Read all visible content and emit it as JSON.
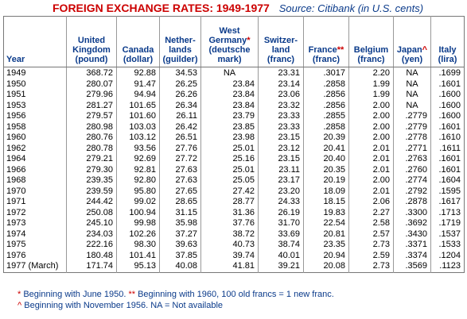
{
  "title": "FOREIGN EXCHANGE RATES: 1949-1977",
  "source": "Source: Citibank (in U.S. cents)",
  "headers": [
    {
      "lines": [
        "Year"
      ]
    },
    {
      "lines": [
        "United",
        "Kingdom",
        "(pound)"
      ]
    },
    {
      "lines": [
        "Canada",
        "(dollar)"
      ]
    },
    {
      "lines": [
        "Nether-",
        "lands",
        "(guilder)"
      ]
    },
    {
      "lines": [
        "West",
        "Germany",
        "(deutsche",
        "mark)"
      ],
      "star": "*",
      "starLine": 1
    },
    {
      "lines": [
        "Switzer-",
        "land",
        "(franc)"
      ]
    },
    {
      "lines": [
        "France",
        "(franc)"
      ],
      "star": "**",
      "starLine": 0
    },
    {
      "lines": [
        "Belgium",
        "(franc)"
      ]
    },
    {
      "lines": [
        "Japan",
        "(yen)"
      ],
      "star": "^",
      "starLine": 0
    },
    {
      "lines": [
        "Italy",
        "(lira)"
      ]
    }
  ],
  "rows": [
    [
      "1949",
      "368.72",
      "92.88",
      "34.53",
      "NA",
      "23.31",
      ".3017",
      "2.20",
      "NA",
      ".1699"
    ],
    [
      "1950",
      "280.07",
      "91.47",
      "26.25",
      "23.84",
      "23.14",
      ".2858",
      "1.99",
      "NA",
      ".1601"
    ],
    [
      "1951",
      "279.96",
      "94.94",
      "26.26",
      "23.84",
      "23.06",
      ".2856",
      "1.99",
      "NA",
      ".1600"
    ],
    [
      "1953",
      "281.27",
      "101.65",
      "26.34",
      "23.84",
      "23.32",
      ".2856",
      "2.00",
      "NA",
      ".1600"
    ],
    [
      "1956",
      "279.57",
      "101.60",
      "26.11",
      "23.79",
      "23.33",
      ".2855",
      "2.00",
      ".2779",
      ".1600"
    ],
    [
      "1958",
      "280.98",
      "103.03",
      "26.42",
      "23.85",
      "23.33",
      ".2858",
      "2.00",
      ".2779",
      ".1601"
    ],
    [
      "1960",
      "280.76",
      "103.12",
      "26.51",
      "23.98",
      "23.15",
      "20.39",
      "2.00",
      ".2778",
      ".1610"
    ],
    [
      "1962",
      "280.78",
      "93.56",
      "27.76",
      "25.01",
      "23.12",
      "20.41",
      "2.01",
      ".2771",
      ".1611"
    ],
    [
      "1964",
      "279.21",
      "92.69",
      "27.72",
      "25.16",
      "23.15",
      "20.40",
      "2.01",
      ".2763",
      ".1601"
    ],
    [
      "1966",
      "279.30",
      "92.81",
      "27.63",
      "25.01",
      "23.11",
      "20.35",
      "2.01",
      ".2760",
      ".1601"
    ],
    [
      "1968",
      "239.35",
      "92.80",
      "27.63",
      "25.05",
      "23.17",
      "20.19",
      "2.00",
      ".2774",
      ".1604"
    ],
    [
      "1970",
      "239.59",
      "95.80",
      "27.65",
      "27.42",
      "23.20",
      "18.09",
      "2.01",
      ".2792",
      ".1595"
    ],
    [
      "1971",
      "244.42",
      "99.02",
      "28.65",
      "28.77",
      "24.33",
      "18.15",
      "2.06",
      ".2878",
      ".1617"
    ],
    [
      "1972",
      "250.08",
      "100.94",
      "31.15",
      "31.36",
      "26.19",
      "19.83",
      "2.27",
      ".3300",
      ".1713"
    ],
    [
      "1973",
      "245.10",
      "99.98",
      "35.98",
      "37.76",
      "31.70",
      "22.54",
      "2.58",
      ".3692",
      ".1719"
    ],
    [
      "1974",
      "234.03",
      "102.26",
      "37.27",
      "38.72",
      "33.69",
      "20.81",
      "2.57",
      ".3430",
      ".1537"
    ],
    [
      "1975",
      "222.16",
      "98.30",
      "39.63",
      "40.73",
      "38.74",
      "23.35",
      "2.73",
      ".3371",
      ".1533"
    ],
    [
      "1976",
      "180.48",
      "101.41",
      "37.85",
      "39.74",
      "40.01",
      "20.94",
      "2.59",
      ".3374",
      ".1204"
    ],
    [
      "1977 (March)",
      "171.74",
      "95.13",
      "40.08",
      "41.81",
      "39.21",
      "20.08",
      "2.73",
      ".3569",
      ".1123"
    ]
  ],
  "notes": {
    "line1": [
      {
        "mark": "*",
        "text": "Beginning with June 1950."
      },
      {
        "mark": "**",
        "text": "Beginning with 1960, 100 old francs = 1 new franc."
      }
    ],
    "line2": [
      {
        "mark": "^",
        "text": "Beginning with November 1956. NA = Not available"
      }
    ]
  },
  "colors": {
    "title": "#cc0000",
    "header": "#0a3a8a",
    "mark": "#cc0000"
  }
}
